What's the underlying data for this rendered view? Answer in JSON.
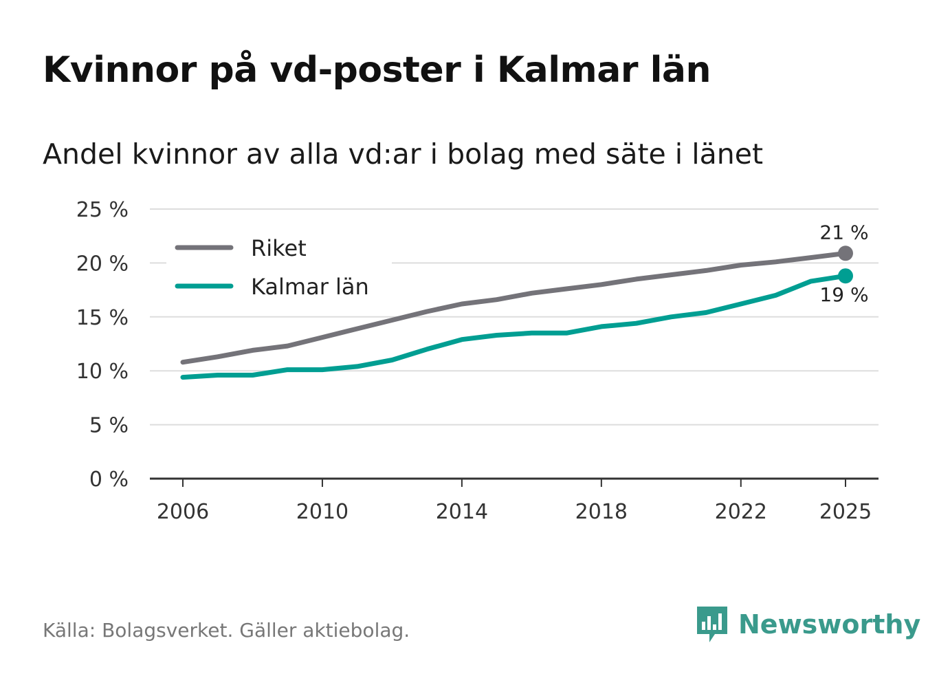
{
  "title": "Kvinnor på vd-poster i Kalmar län",
  "subtitle": "Andel kvinnor av alla vd:ar i bolag med säte i länet",
  "source": "Källa: Bolagsverket. Gäller aktiebolag.",
  "brand": "Newsworthy",
  "colors": {
    "riket": "#747379",
    "kalmar": "#009e92",
    "grid": "#dddddd",
    "axis": "#333333",
    "brand": "#3a9a8c"
  },
  "chart_data": {
    "type": "line",
    "title": "Kvinnor på vd-poster i Kalmar län",
    "subtitle": "Andel kvinnor av alla vd:ar i bolag med säte i länet",
    "xlabel": "",
    "ylabel": "",
    "ylim": [
      0,
      25
    ],
    "xlim": [
      2006,
      2025
    ],
    "x": [
      2006,
      2007,
      2008,
      2009,
      2010,
      2011,
      2012,
      2013,
      2014,
      2015,
      2016,
      2017,
      2018,
      2019,
      2020,
      2021,
      2022,
      2023,
      2024,
      2025
    ],
    "x_ticks": [
      2006,
      2010,
      2014,
      2018,
      2022,
      2025
    ],
    "x_tick_labels": [
      "2006",
      "2010",
      "2014",
      "2018",
      "2022",
      "2025"
    ],
    "y_ticks": [
      0,
      5,
      10,
      15,
      20,
      25
    ],
    "y_tick_labels": [
      "0 %",
      "5 %",
      "10 %",
      "15 %",
      "20 %",
      "25 %"
    ],
    "grid": true,
    "legend_position": "top-left",
    "series": [
      {
        "name": "Riket",
        "color": "#747379",
        "values": [
          10.8,
          11.3,
          11.9,
          12.3,
          13.1,
          13.9,
          14.7,
          15.5,
          16.2,
          16.6,
          17.2,
          17.6,
          18.0,
          18.5,
          18.9,
          19.3,
          19.8,
          20.1,
          20.5,
          20.9
        ],
        "end_label": "21 %"
      },
      {
        "name": "Kalmar län",
        "color": "#009e92",
        "values": [
          9.4,
          9.6,
          9.6,
          10.1,
          10.1,
          10.4,
          11.0,
          12.0,
          12.9,
          13.3,
          13.5,
          13.5,
          14.1,
          14.4,
          15.0,
          15.4,
          16.2,
          17.0,
          18.3,
          18.8
        ],
        "end_label": "19 %"
      }
    ]
  }
}
